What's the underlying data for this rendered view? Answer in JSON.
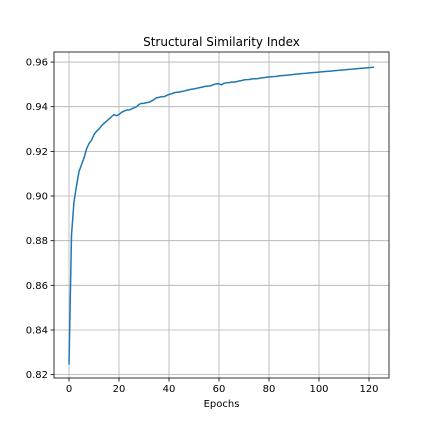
{
  "chart_data": {
    "type": "line",
    "title": "Structural Similarity Index",
    "xlabel": "Epochs",
    "ylabel": "",
    "xlim": [
      -6,
      128
    ],
    "ylim": [
      0.8185,
      0.9645
    ],
    "xticks": [
      0,
      20,
      40,
      60,
      80,
      100,
      120
    ],
    "yticks": [
      0.82,
      0.84,
      0.86,
      0.88,
      0.9,
      0.92,
      0.94,
      0.96
    ],
    "ytick_labels": [
      "0.82",
      "0.84",
      "0.86",
      "0.88",
      "0.90",
      "0.92",
      "0.94",
      "0.96"
    ],
    "grid": true,
    "line_color": "#1f77b4",
    "series": [
      {
        "x": [
          0,
          1,
          2,
          3,
          4,
          5,
          6,
          7,
          8,
          9,
          10,
          11,
          12,
          13,
          14,
          15,
          16,
          17,
          18,
          19,
          20,
          21,
          22,
          23,
          24,
          25,
          26,
          27,
          28,
          29,
          30,
          31,
          32,
          33,
          34,
          35,
          36,
          37,
          38,
          39,
          40,
          41,
          42,
          43,
          44,
          45,
          46,
          47,
          48,
          49,
          50,
          51,
          52,
          53,
          54,
          55,
          56,
          57,
          58,
          59,
          60,
          61,
          62,
          63,
          64,
          65,
          66,
          67,
          68,
          69,
          70,
          71,
          72,
          73,
          74,
          75,
          76,
          77,
          78,
          79,
          80,
          81,
          82,
          83,
          84,
          85,
          86,
          87,
          88,
          89,
          90,
          91,
          92,
          93,
          94,
          95,
          96,
          97,
          98,
          99,
          100,
          101,
          102,
          103,
          104,
          105,
          106,
          107,
          108,
          109,
          110,
          111,
          112,
          113,
          114,
          115,
          116,
          117,
          118,
          119,
          120,
          121,
          122
        ],
        "y": [
          0.8245,
          0.8825,
          0.8975,
          0.9045,
          0.911,
          0.914,
          0.917,
          0.921,
          0.9235,
          0.925,
          0.9275,
          0.929,
          0.93,
          0.9315,
          0.9325,
          0.9335,
          0.9345,
          0.9355,
          0.9365,
          0.936,
          0.9365,
          0.9375,
          0.938,
          0.9385,
          0.9385,
          0.939,
          0.9395,
          0.94,
          0.941,
          0.9415,
          0.9415,
          0.9418,
          0.942,
          0.9425,
          0.9432,
          0.944,
          0.9442,
          0.9445,
          0.9445,
          0.945,
          0.9455,
          0.9458,
          0.9462,
          0.9465,
          0.9465,
          0.9468,
          0.947,
          0.9473,
          0.9476,
          0.9478,
          0.948,
          0.9482,
          0.9485,
          0.9487,
          0.949,
          0.9492,
          0.9492,
          0.9495,
          0.95,
          0.9502,
          0.9503,
          0.9498,
          0.9505,
          0.9507,
          0.9508,
          0.951,
          0.951,
          0.9512,
          0.9515,
          0.9517,
          0.952,
          0.9521,
          0.9522,
          0.9524,
          0.9525,
          0.9525,
          0.9527,
          0.9529,
          0.953,
          0.9532,
          0.9533,
          0.9534,
          0.9535,
          0.9536,
          0.9538,
          0.9539,
          0.954,
          0.9541,
          0.9542,
          0.9543,
          0.9545,
          0.9546,
          0.9547,
          0.9548,
          0.9549,
          0.955,
          0.9551,
          0.9552,
          0.9553,
          0.9554,
          0.9555,
          0.9556,
          0.9557,
          0.9558,
          0.9559,
          0.956,
          0.9561,
          0.9562,
          0.9563,
          0.9564,
          0.9565,
          0.9566,
          0.9567,
          0.9568,
          0.9569,
          0.957,
          0.9571,
          0.9572,
          0.9573,
          0.9574,
          0.9575,
          0.9576,
          0.9577
        ]
      }
    ]
  }
}
